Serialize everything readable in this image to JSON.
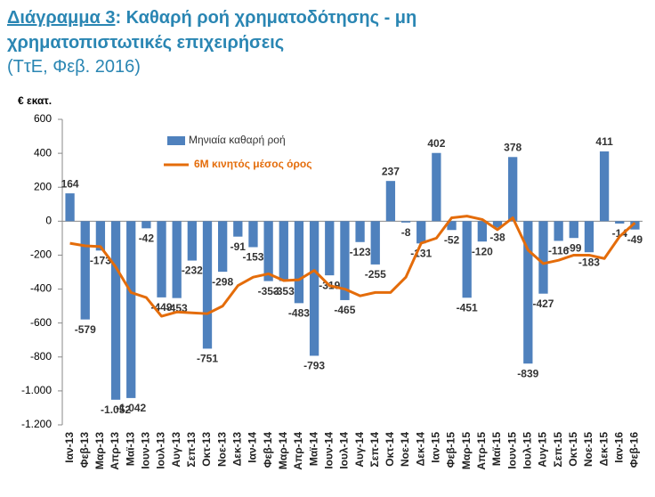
{
  "chart_data": {
    "type": "bar",
    "title_number": "Διάγραμμα 3",
    "title": ": Καθαρή ροή χρηματοδότησης - μη χρηματοπιστωτικές επιχειρήσεις",
    "subtitle": "(ΤτΕ, Φεβ. 2016)",
    "y_label": "€ εκατ.",
    "categories": [
      "Ιαν-13",
      "Φεβ-13",
      "Μαρ-13",
      "Απρ-13",
      "Μαϊ-13",
      "Ιουν-13",
      "Ιουλ-13",
      "Αυγ-13",
      "Σεπ-13",
      "Οκτ-13",
      "Νοε-13",
      "Δεκ-13",
      "Ιαν-14",
      "Φεβ-14",
      "Μαρ-14",
      "Απρ-14",
      "Μαϊ-14",
      "Ιουν-14",
      "Ιουλ-14",
      "Αυγ-14",
      "Σεπ-14",
      "Οκτ-14",
      "Νοε-14",
      "Δεκ-14",
      "Ιαν-15",
      "Φεβ-15",
      "Μαρ-15",
      "Απρ-15",
      "Μαϊ-15",
      "Ιουν-15",
      "Ιουλ-15",
      "Αυγ-15",
      "Σεπ-15",
      "Οκτ-15",
      "Νοε-15",
      "Δεκ-15",
      "Ιαν-16",
      "Φεβ-16"
    ],
    "series": [
      {
        "name": "Μηνιαία καθαρή ροή",
        "type": "bar",
        "color": "#4f81bd",
        "values": [
          164,
          -579,
          -173,
          -1052,
          -1042,
          -42,
          -449,
          -453,
          -232,
          -751,
          -298,
          -91,
          -153,
          -353,
          -353,
          -483,
          -793,
          -319,
          -465,
          -123,
          -255,
          237,
          -8,
          -131,
          402,
          -52,
          -451,
          -120,
          -38,
          378,
          -839,
          -427,
          -116,
          -99,
          -183,
          411,
          -14,
          -49
        ],
        "value_labels": [
          "164",
          "-579",
          "-173",
          "-1.052",
          "-1.042",
          "-42",
          "-449",
          "-453",
          "-232",
          "-751",
          "-298",
          "-91",
          "-153",
          "-353",
          "-353",
          "-483",
          "-793",
          "-319",
          "-465",
          "-123",
          "-255",
          "237",
          "-8",
          "-131",
          "402",
          "-52",
          "-451",
          "-120",
          "-38",
          "378",
          "-839",
          "-427",
          "-116",
          "-99",
          "-183",
          "411",
          "-14",
          "-49"
        ]
      },
      {
        "name": "6M κινητός μέσος όρος",
        "type": "line",
        "color": "#e46c0a",
        "values": [
          -130,
          -145,
          -150,
          -270,
          -420,
          -450,
          -560,
          -535,
          -540,
          -545,
          -500,
          -380,
          -330,
          -310,
          -350,
          -345,
          -290,
          -380,
          -400,
          -440,
          -420,
          -420,
          -330,
          -130,
          -100,
          20,
          30,
          10,
          -50,
          20,
          -170,
          -250,
          -230,
          -200,
          -200,
          -220,
          -90,
          -10
        ]
      }
    ],
    "ylim": [
      -1200,
      600
    ],
    "yticks": [
      {
        "value": -1200,
        "label": "-1.200"
      },
      {
        "value": -1000,
        "label": "-1.000"
      },
      -800,
      -600,
      -400,
      -200,
      0,
      200,
      400,
      600
    ],
    "grid": false,
    "legend": "top-left"
  }
}
